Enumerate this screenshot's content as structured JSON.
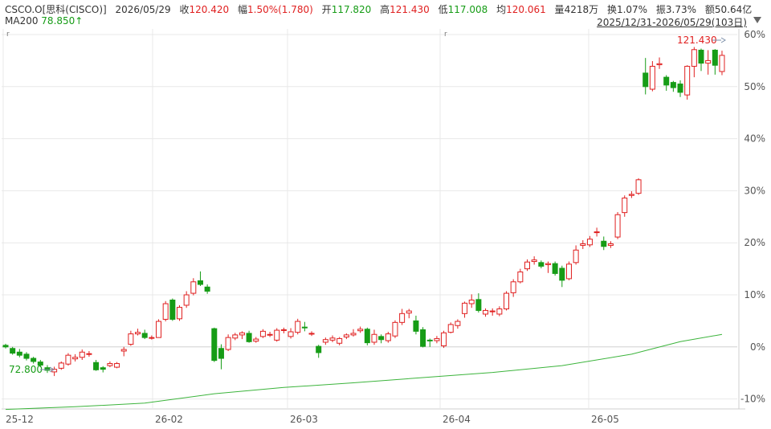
{
  "header": {
    "symbol": "CSCO.O[思科(CISCO)]",
    "date": "2026/05/29",
    "close_label": "收",
    "close": "120.420",
    "change_label": "幅",
    "change": "1.50%(1.780)",
    "open_label": "开",
    "open": "117.820",
    "high_label": "高",
    "high": "121.430",
    "low_label": "低",
    "low": "117.008",
    "avg_label": "均",
    "avg": "120.061",
    "volume_label": "量",
    "volume": "4218万",
    "turnover_label": "换",
    "turnover": "1.07%",
    "amplitude_label": "振",
    "amplitude": "3.73%",
    "amount_label": "额",
    "amount": "50.64亿",
    "ma_label": "MA200",
    "ma_value": "78.850",
    "ma_arrow": "↑",
    "range": "2025/12/31-2026/05/29(103日)"
  },
  "colors": {
    "up": "#e02020",
    "down": "#169c16",
    "ma": "#3cb43c",
    "grid": "#e8e8e8"
  },
  "chart_data": {
    "type": "candlestick",
    "yaxis_unit": "percent",
    "ylim": [
      -13,
      62
    ],
    "yticks": [
      "60%",
      "50%",
      "40%",
      "30%",
      "20%",
      "10%",
      "0%",
      "-10%"
    ],
    "x_labels": [
      "25-12",
      "26-02",
      "26-03",
      "26-04",
      "26-05"
    ],
    "annotations": {
      "high_value": "121.430",
      "low_value": "72.800"
    },
    "candles": [
      {
        "o": 0.3,
        "c": 0.0,
        "h": 0.6,
        "l": -0.3
      },
      {
        "o": -0.3,
        "c": -1.2,
        "h": 0.0,
        "l": -1.5
      },
      {
        "o": -1.0,
        "c": -1.6,
        "h": -0.4,
        "l": -2.0
      },
      {
        "o": -1.4,
        "c": -2.2,
        "h": -1.0,
        "l": -2.6
      },
      {
        "o": -2.2,
        "c": -2.8,
        "h": -1.9,
        "l": -3.2
      },
      {
        "o": -2.9,
        "c": -3.5,
        "h": -2.5,
        "l": -3.9
      },
      {
        "o": -4.0,
        "c": -4.5,
        "h": -3.5,
        "l": -5.0
      },
      {
        "o": -4.8,
        "c": -4.3,
        "h": -3.8,
        "l": -5.6
      },
      {
        "o": -4.1,
        "c": -3.1,
        "h": -2.8,
        "l": -4.4
      },
      {
        "o": -3.3,
        "c": -1.6,
        "h": -1.2,
        "l": -3.6
      },
      {
        "o": -2.3,
        "c": -2.0,
        "h": -1.4,
        "l": -2.8
      },
      {
        "o": -2.0,
        "c": -1.0,
        "h": -0.5,
        "l": -2.5
      },
      {
        "o": -1.4,
        "c": -1.3,
        "h": -0.8,
        "l": -1.9
      },
      {
        "o": -3.0,
        "c": -4.4,
        "h": -2.5,
        "l": -4.6
      },
      {
        "o": -4.0,
        "c": -4.3,
        "h": -3.7,
        "l": -4.9
      },
      {
        "o": -3.6,
        "c": -3.2,
        "h": -2.8,
        "l": -3.9
      },
      {
        "o": -3.9,
        "c": -3.2,
        "h": -2.9,
        "l": -4.1
      },
      {
        "o": -0.8,
        "c": -0.5,
        "h": 0.0,
        "l": -1.8
      },
      {
        "o": 0.5,
        "c": 2.5,
        "h": 3.1,
        "l": 0.2
      },
      {
        "o": 2.5,
        "c": 2.8,
        "h": 3.5,
        "l": 2.2
      },
      {
        "o": 2.6,
        "c": 1.8,
        "h": 3.3,
        "l": 1.5
      },
      {
        "o": 1.8,
        "c": 1.8,
        "h": 2.2,
        "l": 1.4
      },
      {
        "o": 1.8,
        "c": 4.9,
        "h": 5.3,
        "l": 1.8
      },
      {
        "o": 5.3,
        "c": 8.3,
        "h": 8.8,
        "l": 4.9
      },
      {
        "o": 9.0,
        "c": 5.3,
        "h": 9.3,
        "l": 5.0
      },
      {
        "o": 5.4,
        "c": 7.6,
        "h": 8.0,
        "l": 5.0
      },
      {
        "o": 8.0,
        "c": 10.0,
        "h": 10.7,
        "l": 7.5
      },
      {
        "o": 10.3,
        "c": 12.5,
        "h": 13.2,
        "l": 9.9
      },
      {
        "o": 12.7,
        "c": 12.0,
        "h": 14.5,
        "l": 11.7
      },
      {
        "o": 11.5,
        "c": 10.7,
        "h": 12.0,
        "l": 10.2
      },
      {
        "o": 3.5,
        "c": -2.6,
        "h": 3.7,
        "l": -2.9
      },
      {
        "o": -0.3,
        "c": -2.2,
        "h": 0.5,
        "l": -4.3
      },
      {
        "o": -0.5,
        "c": 1.8,
        "h": 2.4,
        "l": -0.8
      },
      {
        "o": 1.7,
        "c": 2.3,
        "h": 2.7,
        "l": 1.3
      },
      {
        "o": 2.3,
        "c": 2.7,
        "h": 3.0,
        "l": 1.5
      },
      {
        "o": 2.6,
        "c": 1.0,
        "h": 3.1,
        "l": 0.8
      },
      {
        "o": 1.1,
        "c": 1.5,
        "h": 1.9,
        "l": 0.8
      },
      {
        "o": 2.0,
        "c": 3.0,
        "h": 3.4,
        "l": 1.7
      },
      {
        "o": 2.4,
        "c": 2.4,
        "h": 2.9,
        "l": 1.9
      },
      {
        "o": 1.3,
        "c": 3.2,
        "h": 3.6,
        "l": 1.0
      },
      {
        "o": 3.2,
        "c": 3.3,
        "h": 3.7,
        "l": 2.6
      },
      {
        "o": 2.0,
        "c": 2.9,
        "h": 3.6,
        "l": 1.6
      },
      {
        "o": 2.8,
        "c": 4.9,
        "h": 5.4,
        "l": 2.4
      },
      {
        "o": 3.8,
        "c": 3.7,
        "h": 4.8,
        "l": 3.0
      },
      {
        "o": 2.6,
        "c": 2.6,
        "h": 3.0,
        "l": 2.1
      },
      {
        "o": 0.1,
        "c": -1.1,
        "h": 0.4,
        "l": -2.1
      },
      {
        "o": 0.9,
        "c": 1.4,
        "h": 1.8,
        "l": 0.4
      },
      {
        "o": 1.3,
        "c": 1.7,
        "h": 2.2,
        "l": 0.9
      },
      {
        "o": 0.7,
        "c": 1.6,
        "h": 1.9,
        "l": 0.3
      },
      {
        "o": 1.9,
        "c": 2.3,
        "h": 2.6,
        "l": 1.5
      },
      {
        "o": 2.3,
        "c": 2.6,
        "h": 3.4,
        "l": 2.0
      },
      {
        "o": 3.1,
        "c": 3.4,
        "h": 3.9,
        "l": 2.7
      },
      {
        "o": 3.4,
        "c": 0.8,
        "h": 3.7,
        "l": 0.3
      },
      {
        "o": 0.9,
        "c": 2.4,
        "h": 3.3,
        "l": 0.4
      },
      {
        "o": 2.0,
        "c": 1.4,
        "h": 2.4,
        "l": 0.7
      },
      {
        "o": 1.2,
        "c": 2.5,
        "h": 2.9,
        "l": 0.8
      },
      {
        "o": 2.1,
        "c": 4.7,
        "h": 5.1,
        "l": 1.7
      },
      {
        "o": 4.7,
        "c": 6.4,
        "h": 7.3,
        "l": 4.2
      },
      {
        "o": 6.5,
        "c": 6.9,
        "h": 7.3,
        "l": 5.5
      },
      {
        "o": 5.0,
        "c": 3.0,
        "h": 6.0,
        "l": 2.4
      },
      {
        "o": 3.3,
        "c": 0.1,
        "h": 3.8,
        "l": -0.1
      },
      {
        "o": 1.3,
        "c": 1.2,
        "h": 1.6,
        "l": 0.0
      },
      {
        "o": 1.2,
        "c": 1.6,
        "h": 2.1,
        "l": 0.7
      },
      {
        "o": 0.2,
        "c": 2.7,
        "h": 3.1,
        "l": -0.2
      },
      {
        "o": 2.8,
        "c": 4.3,
        "h": 4.7,
        "l": 2.6
      },
      {
        "o": 4.1,
        "c": 4.9,
        "h": 5.3,
        "l": 3.5
      },
      {
        "o": 6.4,
        "c": 8.4,
        "h": 8.7,
        "l": 5.6
      },
      {
        "o": 8.3,
        "c": 9.0,
        "h": 10.1,
        "l": 7.5
      },
      {
        "o": 9.1,
        "c": 7.0,
        "h": 10.3,
        "l": 6.6
      },
      {
        "o": 6.3,
        "c": 7.0,
        "h": 7.4,
        "l": 5.8
      },
      {
        "o": 6.8,
        "c": 6.9,
        "h": 7.4,
        "l": 6.0
      },
      {
        "o": 6.3,
        "c": 7.3,
        "h": 7.8,
        "l": 5.9
      },
      {
        "o": 7.3,
        "c": 10.3,
        "h": 10.7,
        "l": 7.0
      },
      {
        "o": 10.4,
        "c": 12.5,
        "h": 13.0,
        "l": 9.6
      },
      {
        "o": 12.5,
        "c": 14.4,
        "h": 15.0,
        "l": 12.2
      },
      {
        "o": 15.0,
        "c": 16.3,
        "h": 16.8,
        "l": 14.6
      },
      {
        "o": 16.4,
        "c": 16.7,
        "h": 17.4,
        "l": 15.8
      },
      {
        "o": 16.2,
        "c": 15.5,
        "h": 16.6,
        "l": 15.1
      },
      {
        "o": 15.8,
        "c": 16.0,
        "h": 16.4,
        "l": 14.2
      },
      {
        "o": 16.0,
        "c": 14.1,
        "h": 16.4,
        "l": 13.7
      },
      {
        "o": 15.1,
        "c": 12.8,
        "h": 15.6,
        "l": 11.5
      },
      {
        "o": 13.1,
        "c": 15.9,
        "h": 16.4,
        "l": 12.8
      },
      {
        "o": 16.2,
        "c": 18.6,
        "h": 19.5,
        "l": 15.8
      },
      {
        "o": 19.5,
        "c": 19.8,
        "h": 20.5,
        "l": 18.8
      },
      {
        "o": 19.6,
        "c": 20.7,
        "h": 21.3,
        "l": 19.2
      },
      {
        "o": 22.0,
        "c": 22.1,
        "h": 22.9,
        "l": 21.2
      },
      {
        "o": 20.3,
        "c": 19.3,
        "h": 21.2,
        "l": 18.6
      },
      {
        "o": 19.5,
        "c": 19.8,
        "h": 20.3,
        "l": 19.0
      },
      {
        "o": 21.1,
        "c": 25.4,
        "h": 25.9,
        "l": 20.7
      },
      {
        "o": 25.8,
        "c": 28.6,
        "h": 29.1,
        "l": 25.0
      },
      {
        "o": 29.1,
        "c": 29.3,
        "h": 29.9,
        "l": 28.6
      },
      {
        "o": 29.5,
        "c": 32.1,
        "h": 32.4,
        "l": 29.2
      },
      {
        "o": 52.6,
        "c": 50.0,
        "h": 55.5,
        "l": 48.5
      },
      {
        "o": 49.5,
        "c": 53.9,
        "h": 54.9,
        "l": 49.1
      },
      {
        "o": 54.2,
        "c": 54.4,
        "h": 55.6,
        "l": 53.4
      },
      {
        "o": 51.8,
        "c": 50.3,
        "h": 52.2,
        "l": 49.2
      },
      {
        "o": 50.8,
        "c": 49.8,
        "h": 51.1,
        "l": 49.0
      },
      {
        "o": 50.5,
        "c": 48.9,
        "h": 51.2,
        "l": 48.0
      },
      {
        "o": 48.4,
        "c": 53.9,
        "h": 54.1,
        "l": 47.5
      },
      {
        "o": 53.9,
        "c": 57.1,
        "h": 57.6,
        "l": 51.8
      },
      {
        "o": 57.0,
        "c": 54.5,
        "h": 57.3,
        "l": 53.0
      },
      {
        "o": 54.5,
        "c": 55.0,
        "h": 57.0,
        "l": 52.3
      },
      {
        "o": 57.0,
        "c": 54.1,
        "h": 57.2,
        "l": 52.3
      },
      {
        "o": 52.9,
        "c": 56.0,
        "h": 56.9,
        "l": 52.2
      }
    ],
    "ma200": [
      [
        0,
        -12.0
      ],
      [
        10,
        -11.5
      ],
      [
        20,
        -10.8
      ],
      [
        30,
        -9.0
      ],
      [
        40,
        -7.8
      ],
      [
        50,
        -6.9
      ],
      [
        60,
        -5.9
      ],
      [
        70,
        -4.9
      ],
      [
        80,
        -3.6
      ],
      [
        90,
        -1.4
      ],
      [
        97,
        1.0
      ],
      [
        103,
        2.4
      ]
    ]
  }
}
